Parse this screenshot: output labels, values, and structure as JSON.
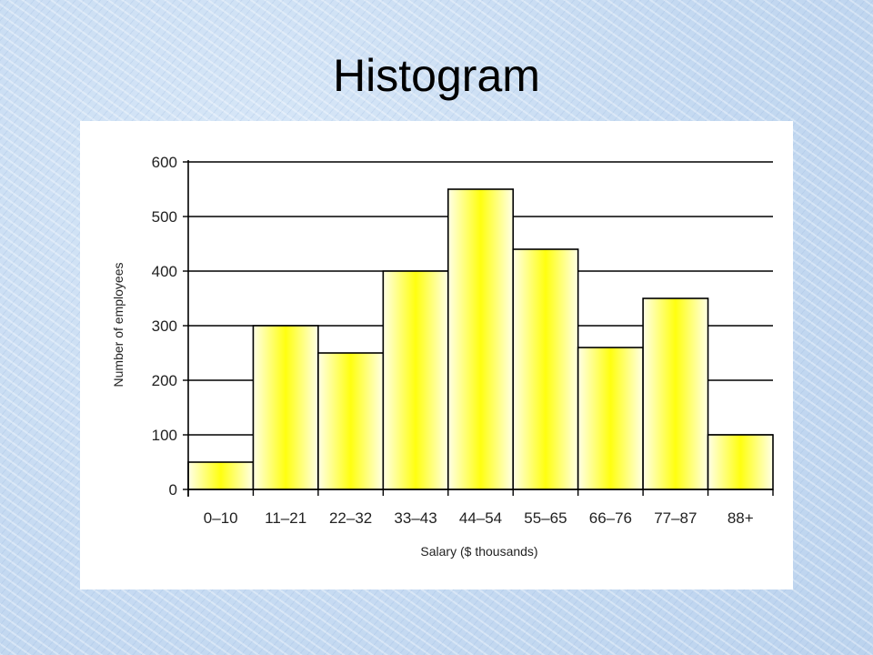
{
  "slide": {
    "title": "Histogram"
  },
  "chart_data": {
    "type": "bar",
    "title": "",
    "xlabel": "Salary ($ thousands)",
    "ylabel": "Number of employees",
    "categories": [
      "0–10",
      "11–21",
      "22–32",
      "33–43",
      "44–54",
      "55–65",
      "66–76",
      "77–87",
      "88+"
    ],
    "values": [
      50,
      300,
      250,
      400,
      550,
      440,
      260,
      350,
      100
    ],
    "ylim": [
      0,
      600
    ],
    "yticks": [
      0,
      100,
      200,
      300,
      400,
      500,
      600
    ],
    "grid": true,
    "legend": "none",
    "colors": {
      "bar_center": "#ffff00",
      "bar_edge": "#ffffe0",
      "bar_stroke": "#000000",
      "grid": "#000000"
    }
  }
}
